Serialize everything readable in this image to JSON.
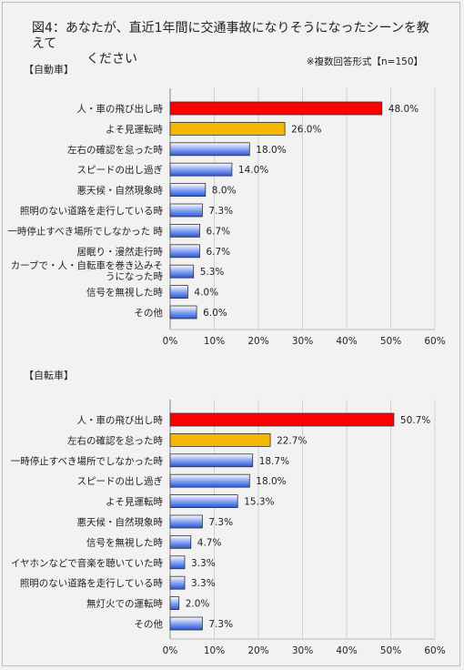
{
  "title": "図4：あなたが、直近1年間に交通事故になりそうになったシーンを教えてください",
  "note": "※複数回答形式【n=150】",
  "colors": {
    "highlight1": "#ff0000",
    "highlight2": "#f5b800",
    "default": "#4a72e8"
  },
  "chart_data": [
    {
      "type": "bar",
      "orientation": "horizontal",
      "section": "【自動車】",
      "categories": [
        "人・車の飛び出し時",
        "よそ見運転時",
        "左右の確認を怠った時",
        "スピードの出し過ぎ",
        "悪天候・自然現象時",
        "照明のない道路を走行している時",
        "一時停止すべき場所でしなかった 時",
        "居眠り・漫然走行時",
        "カーブで・人・自転車を巻き込みそうになった時",
        "信号を無視した時",
        "その他"
      ],
      "values": [
        48.0,
        26.0,
        18.0,
        14.0,
        8.0,
        7.3,
        6.7,
        6.7,
        5.3,
        4.0,
        6.0
      ],
      "value_labels": [
        "48.0%",
        "26.0%",
        "18.0%",
        "14.0%",
        "8.0%",
        "7.3%",
        "6.7%",
        "6.7%",
        "5.3%",
        "4.0%",
        "6.0%"
      ],
      "xlim": [
        0,
        60
      ],
      "xticks": [
        "0%",
        "10%",
        "20%",
        "30%",
        "40%",
        "50%",
        "60%"
      ],
      "grid": true
    },
    {
      "type": "bar",
      "orientation": "horizontal",
      "section": "【自転車】",
      "categories": [
        "人・車の飛び出し時",
        "左右の確認を怠った時",
        "一時停止すべき場所でしなかった時",
        "スピードの出し過ぎ",
        "よそ見運転時",
        "悪天候・自然現象時",
        "信号を無視した時",
        "イヤホンなどで音楽を聴いていた時",
        "照明のない道路を走行している時",
        "無灯火での運転時",
        "その他"
      ],
      "values": [
        50.7,
        22.7,
        18.7,
        18.0,
        15.3,
        7.3,
        4.7,
        3.3,
        3.3,
        2.0,
        7.3
      ],
      "value_labels": [
        "50.7%",
        "22.7%",
        "18.7%",
        "18.0%",
        "15.3%",
        "7.3%",
        "4.7%",
        "3.3%",
        "3.3%",
        "2.0%",
        "7.3%"
      ],
      "xlim": [
        0,
        60
      ],
      "xticks": [
        "0%",
        "10%",
        "20%",
        "30%",
        "40%",
        "50%",
        "60%"
      ],
      "grid": true
    }
  ]
}
